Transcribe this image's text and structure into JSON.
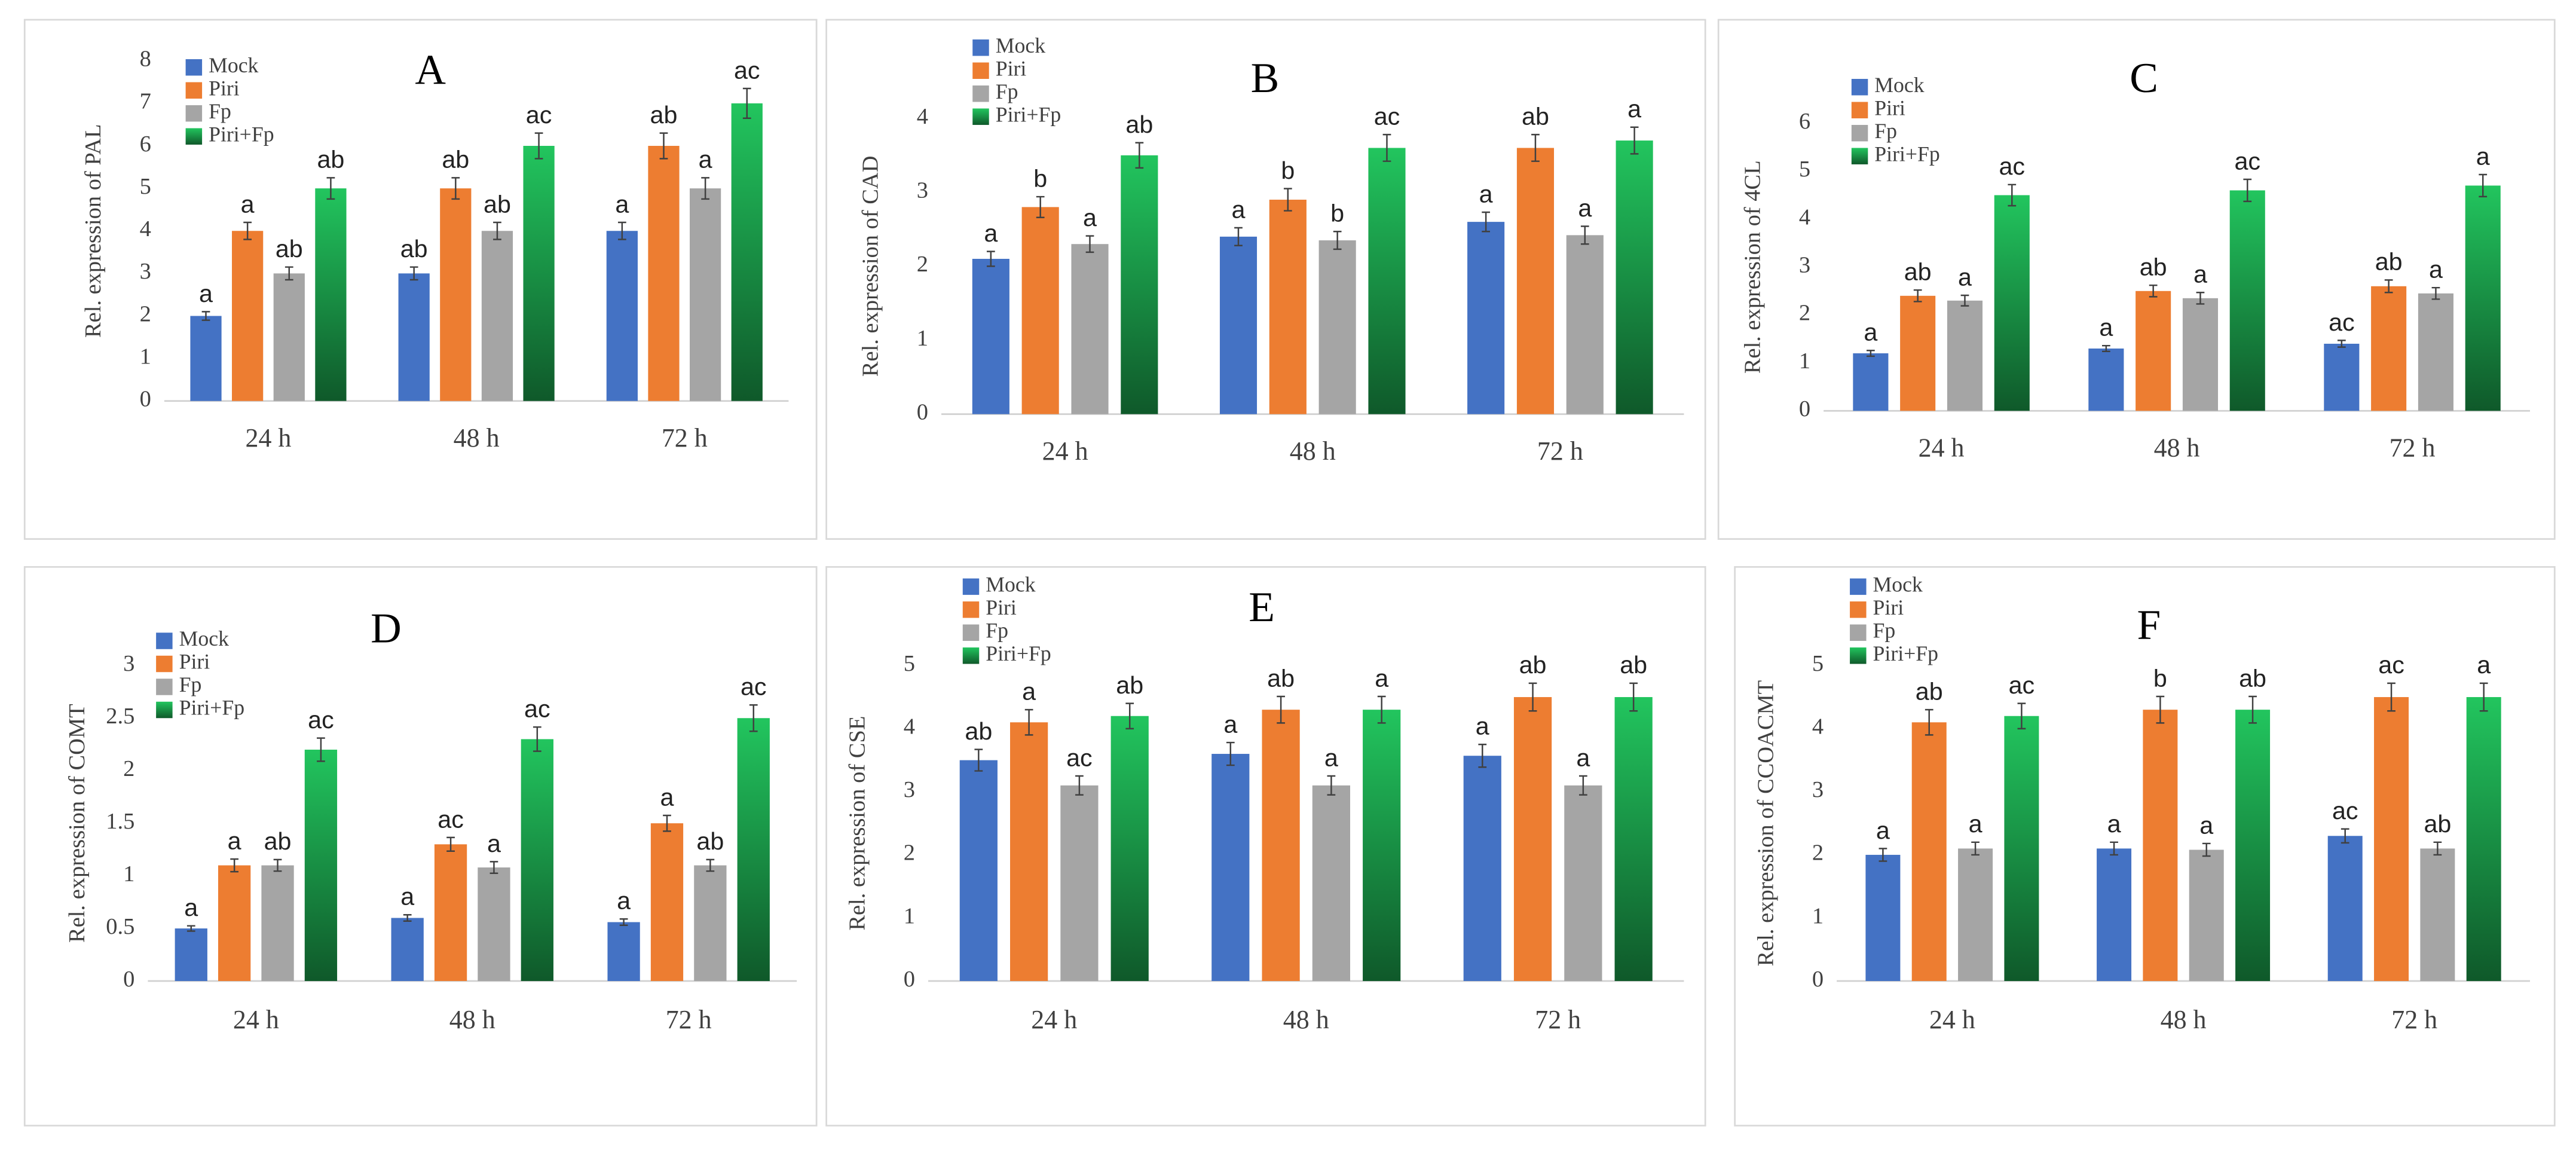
{
  "chart_data": [
    {
      "type": "bar",
      "title": "A",
      "y_label": "Rel. expression of PAL",
      "categories": [
        "24 h",
        "48 h",
        "72 h"
      ],
      "ylim": [
        0,
        8
      ],
      "yticks": [
        0,
        1,
        2,
        3,
        4,
        5,
        6,
        7,
        8
      ],
      "series": [
        {
          "name": "Mock",
          "color": "#4472c4",
          "values": [
            2,
            3,
            4
          ],
          "errors": [
            0.1,
            0.15,
            0.2
          ],
          "labels": [
            "a",
            "ab",
            "a"
          ]
        },
        {
          "name": "Piri",
          "color": "#ed7d31",
          "values": [
            4,
            5,
            6
          ],
          "errors": [
            0.2,
            0.25,
            0.3
          ],
          "labels": [
            "a",
            "ab",
            "ab"
          ]
        },
        {
          "name": "Fp",
          "color": "#a5a5a5",
          "values": [
            3,
            4,
            5
          ],
          "errors": [
            0.15,
            0.2,
            0.25
          ],
          "labels": [
            "ab",
            "ab",
            "a"
          ]
        },
        {
          "name": "Piri+Fp",
          "color": "#22c55e",
          "values": [
            5,
            6,
            7
          ],
          "errors": [
            0.25,
            0.3,
            0.35
          ],
          "labels": [
            "ab",
            "ac",
            "ac"
          ]
        }
      ]
    },
    {
      "type": "bar",
      "title": "B",
      "y_label": "Rel. expression of CAD",
      "categories": [
        "24 h",
        "48 h",
        "72 h"
      ],
      "ylim": [
        0,
        4
      ],
      "yticks": [
        0,
        1,
        2,
        3,
        4
      ],
      "series": [
        {
          "name": "Mock",
          "color": "#4472c4",
          "values": [
            2.1,
            2.4,
            2.6
          ],
          "errors": [
            0.1,
            0.12,
            0.13
          ],
          "labels": [
            "a",
            "a",
            "a"
          ]
        },
        {
          "name": "Piri",
          "color": "#ed7d31",
          "values": [
            2.8,
            2.9,
            3.6
          ],
          "errors": [
            0.14,
            0.15,
            0.18
          ],
          "labels": [
            "b",
            "b",
            "ab"
          ]
        },
        {
          "name": "Fp",
          "color": "#a5a5a5",
          "values": [
            2.3,
            2.35,
            2.42
          ],
          "errors": [
            0.11,
            0.12,
            0.12
          ],
          "labels": [
            "a",
            "b",
            "a"
          ]
        },
        {
          "name": "Piri+Fp",
          "color": "#22c55e",
          "values": [
            3.5,
            3.6,
            3.7
          ],
          "errors": [
            0.17,
            0.18,
            0.18
          ],
          "labels": [
            "ab",
            "ac",
            "a"
          ]
        }
      ]
    },
    {
      "type": "bar",
      "title": "C",
      "y_label": "Rel. expression of 4CL",
      "categories": [
        "24 h",
        "48 h",
        "72 h"
      ],
      "ylim": [
        0,
        6
      ],
      "yticks": [
        0,
        1,
        2,
        3,
        4,
        5,
        6
      ],
      "series": [
        {
          "name": "Mock",
          "color": "#4472c4",
          "values": [
            1.2,
            1.3,
            1.4
          ],
          "errors": [
            0.06,
            0.06,
            0.07
          ],
          "labels": [
            "a",
            "a",
            "ac"
          ]
        },
        {
          "name": "Piri",
          "color": "#ed7d31",
          "values": [
            2.4,
            2.5,
            2.6
          ],
          "errors": [
            0.12,
            0.12,
            0.13
          ],
          "labels": [
            "ab",
            "ab",
            "ab"
          ]
        },
        {
          "name": "Fp",
          "color": "#a5a5a5",
          "values": [
            2.3,
            2.35,
            2.45
          ],
          "errors": [
            0.11,
            0.12,
            0.12
          ],
          "labels": [
            "a",
            "a",
            "a"
          ]
        },
        {
          "name": "Piri+Fp",
          "color": "#22c55e",
          "values": [
            4.5,
            4.6,
            4.7
          ],
          "errors": [
            0.22,
            0.23,
            0.23
          ],
          "labels": [
            "ac",
            "ac",
            "a"
          ]
        }
      ]
    },
    {
      "type": "bar",
      "title": "D",
      "y_label": "Rel. expression of COMT",
      "categories": [
        "24 h",
        "48 h",
        "72 h"
      ],
      "ylim": [
        0,
        3
      ],
      "yticks": [
        0,
        0.5,
        1,
        1.5,
        2,
        2.5,
        3
      ],
      "series": [
        {
          "name": "Mock",
          "color": "#4472c4",
          "values": [
            0.5,
            0.6,
            0.56
          ],
          "errors": [
            0.025,
            0.03,
            0.03
          ],
          "labels": [
            "a",
            "a",
            "a"
          ]
        },
        {
          "name": "Piri",
          "color": "#ed7d31",
          "values": [
            1.1,
            1.3,
            1.5
          ],
          "errors": [
            0.06,
            0.065,
            0.075
          ],
          "labels": [
            "a",
            "ac",
            "a"
          ]
        },
        {
          "name": "Fp",
          "color": "#a5a5a5",
          "values": [
            1.1,
            1.08,
            1.1
          ],
          "errors": [
            0.055,
            0.055,
            0.055
          ],
          "labels": [
            "ab",
            "a",
            "ab"
          ]
        },
        {
          "name": "Piri+Fp",
          "color": "#22c55e",
          "values": [
            2.2,
            2.3,
            2.5
          ],
          "errors": [
            0.11,
            0.115,
            0.125
          ],
          "labels": [
            "ac",
            "ac",
            "ac"
          ]
        }
      ]
    },
    {
      "type": "bar",
      "title": "E",
      "y_label": "Rel. expression of CSE",
      "categories": [
        "24 h",
        "48 h",
        "72 h"
      ],
      "ylim": [
        0,
        5
      ],
      "yticks": [
        0,
        1,
        2,
        3,
        4,
        5
      ],
      "series": [
        {
          "name": "Mock",
          "color": "#4472c4",
          "values": [
            3.5,
            3.6,
            3.57
          ],
          "errors": [
            0.17,
            0.18,
            0.18
          ],
          "labels": [
            "ab",
            "a",
            "a"
          ]
        },
        {
          "name": "Piri",
          "color": "#ed7d31",
          "values": [
            4.1,
            4.3,
            4.5
          ],
          "errors": [
            0.2,
            0.21,
            0.22
          ],
          "labels": [
            "a",
            "ab",
            "ab"
          ]
        },
        {
          "name": "Fp",
          "color": "#a5a5a5",
          "values": [
            3.1,
            3.1,
            3.1
          ],
          "errors": [
            0.15,
            0.15,
            0.15
          ],
          "labels": [
            "ac",
            "a",
            "a"
          ]
        },
        {
          "name": "Piri+Fp",
          "color": "#22c55e",
          "values": [
            4.2,
            4.3,
            4.5
          ],
          "errors": [
            0.2,
            0.21,
            0.22
          ],
          "labels": [
            "ab",
            "a",
            "ab"
          ]
        }
      ]
    },
    {
      "type": "bar",
      "title": "F",
      "y_label": "Rel. expression of CCOACMT",
      "categories": [
        "24 h",
        "48 h",
        "72 h"
      ],
      "ylim": [
        0,
        5
      ],
      "yticks": [
        0,
        1,
        2,
        3,
        4,
        5
      ],
      "series": [
        {
          "name": "Mock",
          "color": "#4472c4",
          "values": [
            2.0,
            2.1,
            2.3
          ],
          "errors": [
            0.1,
            0.1,
            0.11
          ],
          "labels": [
            "a",
            "a",
            "ac"
          ]
        },
        {
          "name": "Piri",
          "color": "#ed7d31",
          "values": [
            4.1,
            4.3,
            4.5
          ],
          "errors": [
            0.2,
            0.21,
            0.22
          ],
          "labels": [
            "ab",
            "b",
            "ac"
          ]
        },
        {
          "name": "Fp",
          "color": "#a5a5a5",
          "values": [
            2.1,
            2.08,
            2.1
          ],
          "errors": [
            0.1,
            0.1,
            0.1
          ],
          "labels": [
            "a",
            "a",
            "ab"
          ]
        },
        {
          "name": "Piri+Fp",
          "color": "#22c55e",
          "values": [
            4.2,
            4.3,
            4.5
          ],
          "errors": [
            0.2,
            0.21,
            0.22
          ],
          "labels": [
            "ac",
            "ab",
            "a"
          ]
        }
      ]
    }
  ]
}
